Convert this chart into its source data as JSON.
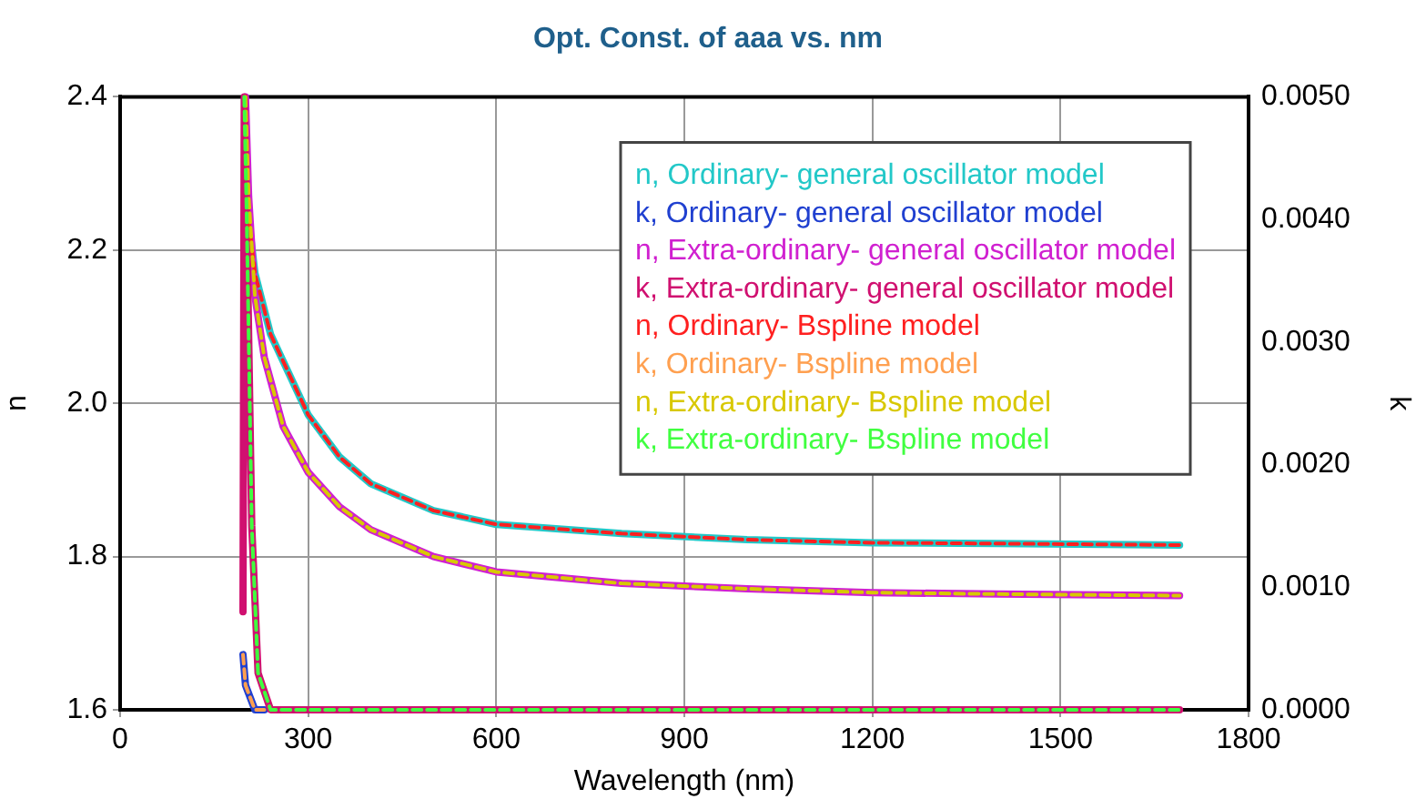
{
  "chart_data": {
    "type": "line",
    "title": "Opt. Const. of aaa vs. nm",
    "xlabel": "Wavelength (nm)",
    "ylabel": "n",
    "y2label": "k",
    "xlim": [
      0,
      1800
    ],
    "xticks": [
      0,
      300,
      600,
      900,
      1200,
      1500,
      1800
    ],
    "ylim": [
      1.6,
      2.4
    ],
    "yticks": [
      {
        "value": 1.6,
        "label": "1.6"
      },
      {
        "value": 1.8,
        "label": "1.8"
      },
      {
        "value": 2.0,
        "label": "2.0"
      },
      {
        "value": 2.2,
        "label": "2.2"
      },
      {
        "value": 2.4,
        "label": "2.4"
      }
    ],
    "y2lim": [
      0,
      0.005
    ],
    "y2ticks": [
      {
        "value": 0,
        "label": "0.0000"
      },
      {
        "value": 0.001,
        "label": "0.0010"
      },
      {
        "value": 0.002,
        "label": "0.0020"
      },
      {
        "value": 0.003,
        "label": "0.0030"
      },
      {
        "value": 0.004,
        "label": "0.0040"
      },
      {
        "value": 0.005,
        "label": "0.0050"
      }
    ],
    "grid": true,
    "legend": "top right",
    "marker": "none",
    "series": [
      {
        "name": "n, Ordinary- general oscillator model",
        "color": "#22c8c8",
        "line_style": "solid",
        "x": [
          205,
          215,
          240,
          300,
          350,
          400,
          500,
          600,
          800,
          1000,
          1200,
          1400,
          1690
        ],
        "values": [
          2.24,
          2.17,
          2.09,
          1.985,
          1.93,
          1.895,
          1.86,
          1.842,
          1.83,
          1.822,
          1.818,
          1.817,
          1.815
        ]
      },
      {
        "name": "k, Ordinary- general oscillator model",
        "color": "#2040d0",
        "axis": "y2",
        "line_style": "solid",
        "x": [
          196,
          200,
          215,
          230
        ],
        "values": [
          0.00045,
          0.0002,
          0,
          0
        ]
      },
      {
        "name": "n, Extra-ordinary- general oscillator model",
        "color": "#d020d0",
        "line_style": "solid",
        "x": [
          200,
          205,
          215,
          230,
          260,
          300,
          350,
          400,
          500,
          600,
          800,
          1000,
          1200,
          1400,
          1690
        ],
        "values": [
          2.4,
          2.27,
          2.14,
          2.06,
          1.97,
          1.91,
          1.865,
          1.835,
          1.8,
          1.78,
          1.765,
          1.758,
          1.753,
          1.751,
          1.749
        ]
      },
      {
        "name": "k, Extra-ordinary- general oscillator model",
        "color": "#d01070",
        "axis": "y2",
        "line_style": "solid",
        "x": [
          196,
          198,
          202,
          210,
          220,
          240,
          1690
        ],
        "values": [
          0.0008,
          0.005,
          0.004,
          0.0015,
          0.0003,
          0,
          0
        ]
      },
      {
        "name": "n, Ordinary- Bspline model",
        "color": "#ff2020",
        "line_style": "dashed",
        "x": [
          205,
          215,
          240,
          300,
          350,
          400,
          500,
          600,
          800,
          1000,
          1200,
          1400,
          1690
        ],
        "values": [
          2.24,
          2.17,
          2.09,
          1.985,
          1.93,
          1.895,
          1.86,
          1.842,
          1.83,
          1.822,
          1.818,
          1.817,
          1.815
        ]
      },
      {
        "name": "k, Ordinary- Bspline model",
        "color": "#ffa050",
        "axis": "y2",
        "line_style": "dashed",
        "x": [
          196,
          200,
          215,
          230
        ],
        "values": [
          0.00045,
          0.0002,
          0,
          0
        ]
      },
      {
        "name": "n, Extra-ordinary- Bspline model",
        "color": "#d8c800",
        "line_style": "dashed",
        "x": [
          200,
          205,
          215,
          230,
          260,
          300,
          350,
          400,
          500,
          600,
          800,
          1000,
          1200,
          1400,
          1690
        ],
        "values": [
          2.4,
          2.27,
          2.14,
          2.06,
          1.97,
          1.91,
          1.865,
          1.835,
          1.8,
          1.78,
          1.765,
          1.758,
          1.753,
          1.751,
          1.749
        ]
      },
      {
        "name": "k, Extra-ordinary- Bspline model",
        "color": "#40ff40",
        "axis": "y2",
        "line_style": "dashed",
        "x": [
          198,
          202,
          210,
          220,
          240,
          1690
        ],
        "values": [
          0.005,
          0.004,
          0.0015,
          0.0003,
          0,
          0
        ]
      }
    ]
  }
}
